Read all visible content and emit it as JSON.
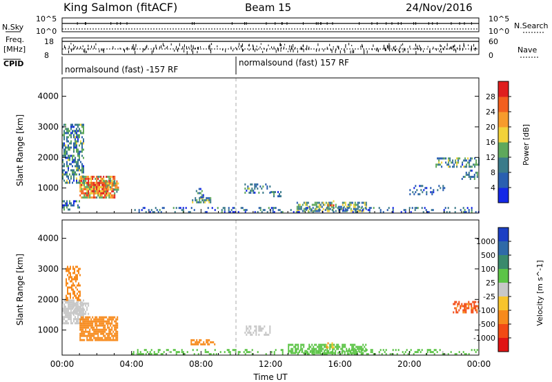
{
  "header": {
    "station": "King Salmon (fitACF)",
    "beam": "Beam 15",
    "date": "24/Nov/2016"
  },
  "status": {
    "nsky_label": "N.Sky",
    "nsky_ticks": [
      "10^5",
      "10^0"
    ],
    "nsearch_label": "N.Search",
    "freq_label_1": "Freq.",
    "freq_label_2": "[MHz]",
    "freq_ticks": [
      "18",
      "8"
    ],
    "nave_label": "Nave",
    "nave_ticks": [
      "60",
      "0"
    ],
    "cpid_label": "CPID",
    "cpid_segments": [
      {
        "label": "normalsound (fast) -157 RF",
        "start_hour": 0,
        "end_hour": 10
      },
      {
        "label": "normalsound (fast) 157 RF",
        "start_hour": 10,
        "end_hour": 24
      }
    ]
  },
  "axes": {
    "xlabel": "Time UT",
    "ylabel": "Slant Range [km]",
    "x_ticks": [
      "00:00",
      "04:00",
      "08:00",
      "12:00",
      "16:00",
      "20:00",
      "00:00"
    ],
    "x_tick_hours": [
      0,
      4,
      8,
      12,
      16,
      20,
      24
    ],
    "y_ticks": [
      "1000",
      "2000",
      "3000",
      "4000"
    ],
    "y_tick_values": [
      1000,
      2000,
      3000,
      4000
    ],
    "xlim": [
      0,
      24
    ],
    "ylim": [
      180,
      4600
    ]
  },
  "colorbars": {
    "power": {
      "label": "Power [dB]",
      "tick_labels": [
        "4",
        "8",
        "12",
        "16",
        "20",
        "24",
        "28"
      ],
      "colors": [
        "#1428e6",
        "#2a5fb0",
        "#3b7b8a",
        "#5fa85c",
        "#f2d23a",
        "#f79b2c",
        "#f25f1e",
        "#e01e1e"
      ]
    },
    "velocity": {
      "label": "Velocity [m s^-1]",
      "tick_labels": [
        "1000",
        "500",
        "100",
        "25",
        "-25",
        "-100",
        "-500",
        "-1000"
      ],
      "colors": [
        "#1c3fc4",
        "#2f6aa8",
        "#3a8a6c",
        "#5cc447",
        "#c8c8c8",
        "#f7c42c",
        "#f78a1c",
        "#f24a14",
        "#e01414"
      ]
    }
  },
  "chart_data": [
    {
      "type": "heatmap",
      "title": "Power",
      "xlabel": "Time UT",
      "ylabel": "Slant Range [km]",
      "xlim": [
        0,
        24
      ],
      "ylim": [
        180,
        4600
      ],
      "colorbar_label": "Power [dB]",
      "colorbar_ticks": [
        4,
        8,
        12,
        16,
        20,
        24,
        28
      ],
      "regions": [
        {
          "t0": 0.0,
          "t1": 1.2,
          "r0": 1200,
          "r1": 3100,
          "value": 10,
          "density": 0.55
        },
        {
          "t0": 1.0,
          "t1": 3.0,
          "r0": 700,
          "r1": 1400,
          "value": 22,
          "density": 0.8
        },
        {
          "t0": 1.4,
          "t1": 2.6,
          "r0": 800,
          "r1": 1200,
          "value": 27,
          "density": 0.8
        },
        {
          "t0": 2.4,
          "t1": 3.2,
          "r0": 900,
          "r1": 1250,
          "value": 18,
          "density": 0.6
        },
        {
          "t0": 0.0,
          "t1": 1.0,
          "r0": 300,
          "r1": 600,
          "value": 8,
          "density": 0.35
        },
        {
          "t0": 7.4,
          "t1": 8.6,
          "r0": 500,
          "r1": 700,
          "value": 12,
          "density": 0.6
        },
        {
          "t0": 7.7,
          "t1": 8.1,
          "r0": 700,
          "r1": 1000,
          "value": 8,
          "density": 0.4
        },
        {
          "t0": 10.5,
          "t1": 12.0,
          "r0": 850,
          "r1": 1150,
          "value": 10,
          "density": 0.45
        },
        {
          "t0": 12.0,
          "t1": 12.6,
          "r0": 700,
          "r1": 900,
          "value": 8,
          "density": 0.4
        },
        {
          "t0": 13.5,
          "t1": 17.5,
          "r0": 250,
          "r1": 550,
          "value": 12,
          "density": 0.55
        },
        {
          "t0": 15.2,
          "t1": 15.6,
          "r0": 400,
          "r1": 600,
          "value": 20,
          "density": 0.6
        },
        {
          "t0": 21.5,
          "t1": 24.0,
          "r0": 1700,
          "r1": 2000,
          "value": 10,
          "density": 0.5
        },
        {
          "t0": 23.0,
          "t1": 24.0,
          "r0": 1300,
          "r1": 1600,
          "value": 8,
          "density": 0.4
        },
        {
          "t0": 20.0,
          "t1": 22.0,
          "r0": 800,
          "r1": 1100,
          "value": 6,
          "density": 0.25
        },
        {
          "t0": 4.0,
          "t1": 24.0,
          "r0": 190,
          "r1": 380,
          "value": 7,
          "density": 0.22
        }
      ]
    },
    {
      "type": "heatmap",
      "title": "Velocity",
      "xlabel": "Time UT",
      "ylabel": "Slant Range [km]",
      "xlim": [
        0,
        24
      ],
      "ylim": [
        180,
        4600
      ],
      "colorbar_label": "Velocity [m s^-1]",
      "colorbar_ticks": [
        1000,
        500,
        100,
        25,
        -25,
        -100,
        -500,
        -1000
      ],
      "regions": [
        {
          "t0": 0.0,
          "t1": 1.2,
          "r0": 1200,
          "r1": 2000,
          "value": 0,
          "density": 0.75
        },
        {
          "t0": 0.2,
          "t1": 1.0,
          "r0": 2000,
          "r1": 3100,
          "value": -150,
          "density": 0.45
        },
        {
          "t0": 1.0,
          "t1": 3.2,
          "r0": 700,
          "r1": 1450,
          "value": -150,
          "density": 0.8
        },
        {
          "t0": 0.6,
          "t1": 1.5,
          "r0": 1500,
          "r1": 1900,
          "value": 0,
          "density": 0.6
        },
        {
          "t0": 7.4,
          "t1": 8.8,
          "r0": 500,
          "r1": 700,
          "value": -200,
          "density": 0.6
        },
        {
          "t0": 10.5,
          "t1": 12.0,
          "r0": 850,
          "r1": 1150,
          "value": 0,
          "density": 0.5
        },
        {
          "t0": 13.0,
          "t1": 17.5,
          "r0": 250,
          "r1": 550,
          "value": 60,
          "density": 0.55
        },
        {
          "t0": 15.2,
          "t1": 15.6,
          "r0": 400,
          "r1": 600,
          "value": -80,
          "density": 0.6
        },
        {
          "t0": 22.5,
          "t1": 24.0,
          "r0": 1600,
          "r1": 1950,
          "value": -600,
          "density": 0.6
        },
        {
          "t0": 4.0,
          "t1": 24.0,
          "r0": 190,
          "r1": 380,
          "value": 40,
          "density": 0.25
        }
      ]
    }
  ]
}
